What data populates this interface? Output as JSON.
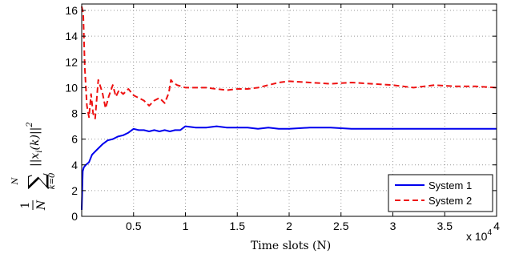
{
  "chart_data": {
    "type": "line",
    "xlabel": "Time slots (N)",
    "x_multiplier_label": "x 10",
    "x_multiplier_exp": "4",
    "ylabel": {
      "frac_num": "1",
      "frac_den": "N",
      "sum_upper": "N",
      "sum_lower": "k=0",
      "summand": "||x",
      "summand_sub": "i",
      "summand_arg": "(k)||",
      "summand_sup": "2"
    },
    "xlim": [
      0,
      40000
    ],
    "ylim": [
      0,
      16.5
    ],
    "x_ticks": [
      0.5,
      1,
      1.5,
      2,
      2.5,
      3,
      3.5,
      4
    ],
    "x_tick_labels": [
      "0.5",
      "1",
      "1.5",
      "2",
      "2.5",
      "3",
      "3.5",
      "4"
    ],
    "y_ticks": [
      0,
      2,
      4,
      6,
      8,
      10,
      12,
      14,
      16
    ],
    "y_tick_labels": [
      "0",
      "2",
      "4",
      "6",
      "8",
      "10",
      "12",
      "14",
      "16"
    ],
    "grid": true,
    "legend_position": "bottom-right",
    "series": [
      {
        "name": "System 1",
        "color": "#0000ee",
        "dash": "solid",
        "x": [
          0,
          100,
          200,
          400,
          700,
          1000,
          1500,
          2000,
          2500,
          3000,
          3500,
          4000,
          4500,
          5000,
          5500,
          6000,
          6500,
          7000,
          7500,
          8000,
          8500,
          9000,
          9500,
          10000,
          11000,
          12000,
          13000,
          14000,
          15000,
          16000,
          17000,
          18000,
          19000,
          20000,
          22000,
          24000,
          26000,
          28000,
          30000,
          32000,
          34000,
          36000,
          38000,
          40000
        ],
        "y": [
          0.5,
          3.5,
          3.8,
          4.0,
          4.2,
          4.8,
          5.2,
          5.6,
          5.9,
          6.0,
          6.2,
          6.3,
          6.5,
          6.8,
          6.7,
          6.7,
          6.6,
          6.7,
          6.6,
          6.7,
          6.6,
          6.7,
          6.7,
          7.0,
          6.9,
          6.9,
          7.0,
          6.9,
          6.9,
          6.9,
          6.8,
          6.9,
          6.8,
          6.8,
          6.9,
          6.9,
          6.8,
          6.8,
          6.8,
          6.8,
          6.8,
          6.8,
          6.8,
          6.8
        ]
      },
      {
        "name": "System 2",
        "color": "#ee1111",
        "dash": "dashed",
        "x": [
          0,
          150,
          300,
          500,
          700,
          900,
          1100,
          1300,
          1600,
          2000,
          2300,
          2600,
          3000,
          3300,
          3600,
          4000,
          4500,
          5000,
          5500,
          6000,
          6500,
          7000,
          7500,
          8000,
          8400,
          8600,
          8800,
          9200,
          9600,
          10000,
          11000,
          12000,
          13000,
          14000,
          15000,
          16000,
          17000,
          18000,
          19000,
          20000,
          22000,
          24000,
          26000,
          28000,
          30000,
          32000,
          34000,
          36000,
          38000,
          40000
        ],
        "y": [
          16.3,
          15.8,
          11.5,
          8.6,
          7.7,
          9.5,
          8.0,
          7.6,
          10.6,
          9.6,
          8.4,
          9.3,
          10.2,
          9.3,
          9.8,
          9.5,
          9.9,
          9.4,
          9.2,
          9.0,
          8.6,
          9.0,
          9.2,
          8.8,
          9.6,
          10.6,
          10.4,
          10.2,
          10.1,
          10.0,
          10.0,
          10.0,
          9.9,
          9.8,
          9.9,
          9.9,
          10.0,
          10.2,
          10.4,
          10.5,
          10.4,
          10.3,
          10.4,
          10.3,
          10.2,
          10.0,
          10.2,
          10.1,
          10.1,
          10.0
        ]
      }
    ]
  }
}
